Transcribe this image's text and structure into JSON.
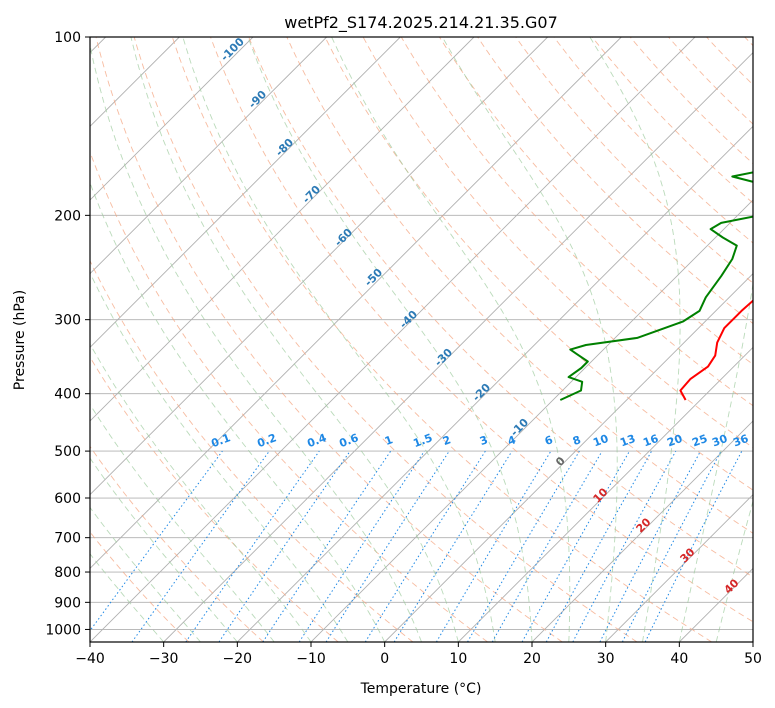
{
  "chart_data": {
    "type": "line",
    "title": "wetPf2_S174.2025.214.21.35.G07",
    "xlabel": "Temperature (°C)",
    "ylabel": "Pressure (hPa)",
    "xlim": [
      -40,
      50
    ],
    "ylim": [
      1050,
      100
    ],
    "y_scale": "log",
    "x_ticks": [
      -40,
      -30,
      -20,
      -10,
      0,
      10,
      20,
      30,
      40,
      50
    ],
    "y_ticks": [
      100,
      200,
      300,
      400,
      500,
      600,
      700,
      800,
      900,
      1000
    ],
    "grid": true,
    "series": [
      {
        "kind": "temperature",
        "color": "#ff0000",
        "points": [
          {
            "t": 8.0,
            "p": 410
          },
          {
            "t": 6.0,
            "p": 395
          },
          {
            "t": 5.8,
            "p": 378
          },
          {
            "t": 6.5,
            "p": 360
          },
          {
            "t": 6.0,
            "p": 345
          },
          {
            "t": 4.5,
            "p": 328
          },
          {
            "t": 3.5,
            "p": 310
          },
          {
            "t": 3.5,
            "p": 290
          },
          {
            "t": 3.8,
            "p": 270
          },
          {
            "t": 3.0,
            "p": 250
          },
          {
            "t": 2.2,
            "p": 232
          },
          {
            "t": 2.5,
            "p": 215
          },
          {
            "t": 4.0,
            "p": 203
          },
          {
            "t": 2.0,
            "p": 192
          },
          {
            "t": 1.0,
            "p": 188
          },
          {
            "t": 4.0,
            "p": 175
          },
          {
            "t": 6.0,
            "p": 167
          },
          {
            "t": 4.5,
            "p": 158
          },
          {
            "t": 1.5,
            "p": 148
          },
          {
            "t": 2.5,
            "p": 140
          },
          {
            "t": 5.5,
            "p": 133
          },
          {
            "t": 6.2,
            "p": 125
          },
          {
            "t": 7.5,
            "p": 113
          },
          {
            "t": 9.5,
            "p": 106
          },
          {
            "t": 13.5,
            "p": 100
          }
        ]
      },
      {
        "kind": "dewpoint",
        "color": "#008000",
        "points": [
          {
            "t": -9.0,
            "p": 410
          },
          {
            "t": -7.5,
            "p": 395
          },
          {
            "t": -8.5,
            "p": 382
          },
          {
            "t": -11.0,
            "p": 375
          },
          {
            "t": -10.5,
            "p": 362
          },
          {
            "t": -10.5,
            "p": 353
          },
          {
            "t": -13.0,
            "p": 343
          },
          {
            "t": -14.5,
            "p": 337
          },
          {
            "t": -13.0,
            "p": 331
          },
          {
            "t": -7.0,
            "p": 322
          },
          {
            "t": -3.0,
            "p": 302
          },
          {
            "t": -2.2,
            "p": 290
          },
          {
            "t": -3.2,
            "p": 275
          },
          {
            "t": -4.0,
            "p": 253
          },
          {
            "t": -4.8,
            "p": 237
          },
          {
            "t": -6.0,
            "p": 225
          },
          {
            "t": -9.0,
            "p": 218
          },
          {
            "t": -11.8,
            "p": 211
          },
          {
            "t": -11.2,
            "p": 206
          },
          {
            "t": -7.0,
            "p": 200
          },
          {
            "t": -4.8,
            "p": 192
          },
          {
            "t": -6.5,
            "p": 184
          },
          {
            "t": -12.0,
            "p": 176
          },
          {
            "t": -16.0,
            "p": 172
          },
          {
            "t": -11.0,
            "p": 166
          },
          {
            "t": -5.0,
            "p": 160
          },
          {
            "t": -4.8,
            "p": 148
          },
          {
            "t": -6.5,
            "p": 140
          },
          {
            "t": -5.5,
            "p": 133
          },
          {
            "t": -2.5,
            "p": 125
          },
          {
            "t": -1.0,
            "p": 113
          },
          {
            "t": 0.5,
            "p": 103
          },
          {
            "t": 0.5,
            "p": 100
          }
        ]
      }
    ],
    "dry_adiabat_labels": [
      "-100",
      "-90",
      "-80",
      "-70",
      "-60",
      "-50",
      "-40",
      "-30",
      "-20",
      "-10"
    ],
    "mixing_ratio_labels": [
      "0.1",
      "0.2",
      "0.4",
      "0.6",
      "1",
      "1.5",
      "2",
      "3",
      "4",
      "6",
      "8",
      "10",
      "13",
      "16",
      "20",
      "25",
      "30",
      "36"
    ],
    "moist_adiabat_labels": [
      "0",
      "10",
      "20",
      "30",
      "40"
    ]
  }
}
